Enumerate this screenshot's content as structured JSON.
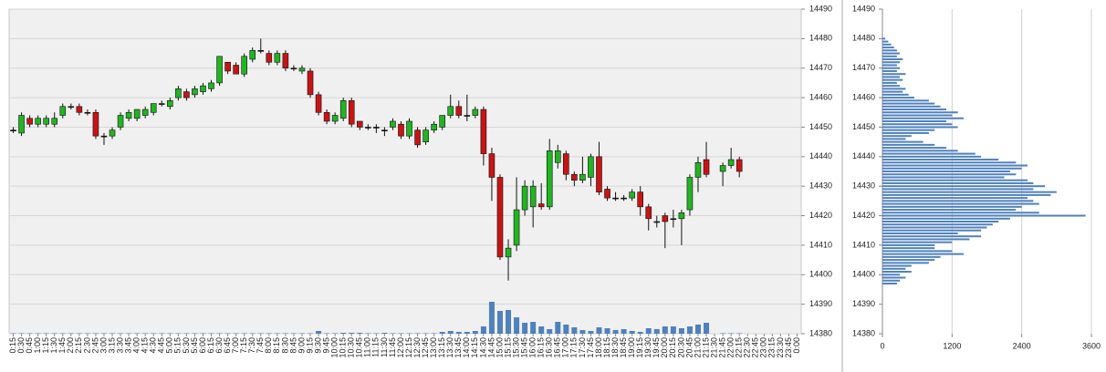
{
  "chart_data": [
    {
      "type": "candlestick",
      "categories": [
        "0:15",
        "0:30",
        "0:45",
        "1:00",
        "1:15",
        "1:30",
        "1:45",
        "2:00",
        "2:15",
        "2:30",
        "2:45",
        "3:00",
        "3:15",
        "3:30",
        "3:45",
        "4:00",
        "4:15",
        "4:30",
        "4:45",
        "5:00",
        "5:15",
        "5:30",
        "5:45",
        "6:00",
        "6:15",
        "6:30",
        "6:45",
        "7:00",
        "7:15",
        "7:30",
        "7:45",
        "8:00",
        "8:15",
        "8:30",
        "8:45",
        "9:00",
        "9:15",
        "9:30",
        "9:45",
        "10:00",
        "10:15",
        "10:30",
        "10:45",
        "11:00",
        "11:15",
        "11:30",
        "11:45",
        "12:00",
        "12:15",
        "12:30",
        "12:45",
        "13:00",
        "13:15",
        "13:30",
        "13:45",
        "14:00",
        "14:15",
        "14:30",
        "14:45",
        "15:00",
        "15:15",
        "15:30",
        "15:45",
        "16:00",
        "16:15",
        "16:30",
        "16:45",
        "17:00",
        "17:15",
        "17:30",
        "17:45",
        "18:00",
        "18:15",
        "18:30",
        "18:45",
        "19:00",
        "19:15",
        "19:30",
        "19:45",
        "20:00",
        "20:15",
        "20:30",
        "20:45",
        "21:00",
        "21:15",
        "21:30",
        "21:45",
        "22:00",
        "22:15",
        "22:30",
        "22:45",
        "23:00",
        "23:15",
        "23:30",
        "23:45",
        "0:00"
      ],
      "open": [
        14449,
        14448,
        14453,
        14451,
        14451,
        14451,
        14454,
        14457,
        14457,
        14455,
        14455,
        14447,
        14447,
        14450,
        14453,
        14453,
        14454,
        14455,
        14458,
        14457,
        14460,
        14462,
        14461,
        14462,
        14463,
        14465,
        14472,
        14471,
        14468,
        14473,
        14476,
        14475,
        14472,
        14475,
        14470,
        14469,
        14469,
        14461,
        14455,
        14452,
        14453,
        14459,
        14452,
        14450,
        14450,
        14449,
        14450,
        14451,
        14447,
        14449,
        14445,
        14449,
        14450,
        14454,
        14457,
        14454,
        14454,
        14456,
        14441,
        14433,
        14406,
        14410,
        14422,
        14423,
        14424,
        14423,
        14438,
        14441,
        14434,
        14432,
        14433,
        14440,
        14429,
        14426,
        14426,
        14426,
        14428,
        14423,
        14418,
        14420,
        14419,
        14419,
        14422,
        14433,
        14439,
        null,
        14435,
        14437,
        14439,
        null,
        null,
        null,
        null,
        null,
        null,
        null
      ],
      "high": [
        14450,
        14455,
        14454,
        14454,
        14454,
        14455,
        14458,
        14458,
        14458,
        14456,
        14456,
        14448,
        14450,
        14455,
        14456,
        14456,
        14457,
        14458,
        14459,
        14460,
        14464,
        14463,
        14464,
        14465,
        14466,
        14474,
        14472,
        14472,
        14475,
        14477,
        14480,
        14476,
        14476,
        14476,
        14471,
        14471,
        14470,
        14462,
        14456,
        14455,
        14460,
        14460,
        14452,
        14451,
        14451,
        14450,
        14453,
        14452,
        14453,
        14450,
        14450,
        14452,
        14454,
        14461,
        14459,
        14461,
        14457,
        14457,
        14443,
        14434,
        14412,
        14433,
        14432,
        14432,
        14431,
        14446,
        14444,
        14442,
        14435,
        14440,
        14441,
        14445,
        14430,
        14428,
        14427,
        14429,
        14430,
        14424,
        14420,
        14421,
        14422,
        14422,
        14434,
        14440,
        14445,
        null,
        14438,
        14443,
        14440,
        null,
        null,
        null,
        null,
        null,
        null,
        null
      ],
      "low": [
        14448,
        14447,
        14450,
        14450,
        14450,
        14450,
        14453,
        14456,
        14454,
        14454,
        14446,
        14444,
        14446,
        14449,
        14452,
        14452,
        14453,
        14454,
        14457,
        14456,
        14459,
        14459,
        14460,
        14461,
        14462,
        14464,
        14468,
        14468,
        14467,
        14472,
        14475,
        14471,
        14471,
        14469,
        14469,
        14468,
        14460,
        14454,
        14451,
        14451,
        14452,
        14450,
        14449,
        14449,
        14448,
        14447,
        14449,
        14446,
        14446,
        14443,
        14444,
        14448,
        14449,
        14453,
        14453,
        14452,
        14453,
        14437,
        14425,
        14405,
        14398,
        14408,
        14420,
        14416,
        14422,
        14422,
        14436,
        14432,
        14430,
        14431,
        14430,
        14427,
        14425,
        14425,
        14425,
        14425,
        14420,
        14415,
        14416,
        14409,
        14416,
        14410,
        14420,
        14428,
        14433,
        null,
        14430,
        14436,
        14433,
        null,
        null,
        null,
        null,
        null,
        null,
        null
      ],
      "close": [
        14449,
        14454,
        14451,
        14453,
        14453,
        14453,
        14457,
        14457,
        14455,
        14455,
        14447,
        14447,
        14449,
        14454,
        14455,
        14456,
        14456,
        14458,
        14458,
        14459,
        14463,
        14460,
        14463,
        14464,
        14465,
        14474,
        14469,
        14468,
        14474,
        14476,
        14476,
        14472,
        14475,
        14470,
        14470,
        14470,
        14461,
        14455,
        14452,
        14454,
        14459,
        14451,
        14450,
        14450,
        14450,
        14449,
        14452,
        14447,
        14452,
        14444,
        14449,
        14451,
        14454,
        14457,
        14454,
        14454,
        14456,
        14441,
        14433,
        14406,
        14409,
        14422,
        14430,
        14430,
        14423,
        14442,
        14442,
        14434,
        14432,
        14434,
        14440,
        14428,
        14426,
        14426,
        14426,
        14428,
        14423,
        14419,
        14418,
        14418,
        14419,
        14421,
        14433,
        14438,
        14434,
        null,
        14437,
        14439,
        14435,
        null,
        null,
        null,
        null,
        null,
        null,
        null
      ],
      "volume": [
        50,
        50,
        50,
        50,
        50,
        50,
        50,
        50,
        50,
        50,
        50,
        50,
        50,
        50,
        50,
        50,
        50,
        50,
        50,
        50,
        50,
        50,
        50,
        50,
        50,
        50,
        50,
        50,
        50,
        50,
        50,
        50,
        50,
        50,
        50,
        50,
        50,
        300,
        50,
        50,
        100,
        100,
        100,
        50,
        50,
        100,
        50,
        50,
        50,
        50,
        50,
        50,
        200,
        300,
        200,
        200,
        300,
        800,
        3500,
        2500,
        2600,
        1800,
        1200,
        1300,
        800,
        500,
        1300,
        1000,
        700,
        400,
        300,
        700,
        600,
        400,
        500,
        300,
        200,
        600,
        500,
        800,
        800,
        600,
        800,
        1000,
        1200,
        null,
        50,
        50,
        50,
        null,
        null,
        null,
        null,
        null,
        null,
        null
      ],
      "up_color": "#22b422",
      "down_color": "#c81414",
      "volume_color": "#4f81bd",
      "ylim": [
        14380,
        14490
      ],
      "yticks": [
        14380,
        14390,
        14400,
        14410,
        14420,
        14430,
        14440,
        14450,
        14460,
        14470,
        14480,
        14490
      ],
      "grid": true
    },
    {
      "type": "hbar",
      "y": [
        14480,
        14479,
        14478,
        14477,
        14476,
        14475,
        14474,
        14473,
        14472,
        14471,
        14470,
        14469,
        14468,
        14467,
        14466,
        14465,
        14464,
        14463,
        14462,
        14461,
        14460,
        14459,
        14458,
        14457,
        14456,
        14455,
        14454,
        14453,
        14452,
        14451,
        14450,
        14449,
        14448,
        14447,
        14446,
        14445,
        14444,
        14443,
        14442,
        14441,
        14440,
        14439,
        14438,
        14437,
        14436,
        14435,
        14434,
        14433,
        14432,
        14431,
        14430,
        14429,
        14428,
        14427,
        14426,
        14425,
        14424,
        14423,
        14422,
        14421,
        14420,
        14419,
        14418,
        14417,
        14416,
        14415,
        14414,
        14413,
        14412,
        14411,
        14410,
        14409,
        14408,
        14407,
        14406,
        14405,
        14404,
        14403,
        14402,
        14401,
        14400,
        14399,
        14398,
        14397
      ],
      "values": [
        50,
        100,
        150,
        200,
        250,
        300,
        250,
        350,
        300,
        250,
        300,
        250,
        400,
        300,
        350,
        250,
        300,
        400,
        350,
        450,
        550,
        800,
        900,
        1000,
        1100,
        1300,
        1200,
        1400,
        1100,
        1200,
        1300,
        900,
        800,
        500,
        400,
        700,
        900,
        1100,
        1300,
        1600,
        1700,
        2000,
        2300,
        2500,
        2400,
        2200,
        2300,
        2100,
        2500,
        2600,
        2800,
        2600,
        3000,
        2900,
        2500,
        2600,
        2700,
        2400,
        2300,
        2700,
        3500,
        2200,
        2000,
        1900,
        1800,
        1700,
        1300,
        1700,
        1500,
        1200,
        900,
        900,
        1200,
        1400,
        1000,
        900,
        800,
        500,
        400,
        500,
        300,
        400,
        300,
        250
      ],
      "color": "#4f81bd",
      "xlim": [
        0,
        3600
      ],
      "xticks": [
        0,
        1200,
        2400,
        3600
      ],
      "ylim": [
        14380,
        14490
      ],
      "yticks": [
        14380,
        14390,
        14400,
        14410,
        14420,
        14430,
        14440,
        14450,
        14460,
        14470,
        14480,
        14490
      ],
      "grid": true
    }
  ]
}
